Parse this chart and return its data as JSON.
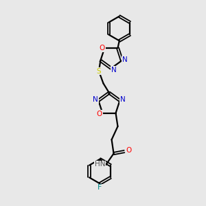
{
  "background_color": "#e8e8e8",
  "atom_colors": {
    "C": "#000000",
    "N": "#0000cc",
    "O": "#ff0000",
    "S": "#cccc00",
    "F": "#008888",
    "H": "#555555"
  },
  "bond_color": "#000000",
  "line_width": 1.6,
  "fig_width": 3.0,
  "fig_height": 3.0,
  "dpi": 100
}
